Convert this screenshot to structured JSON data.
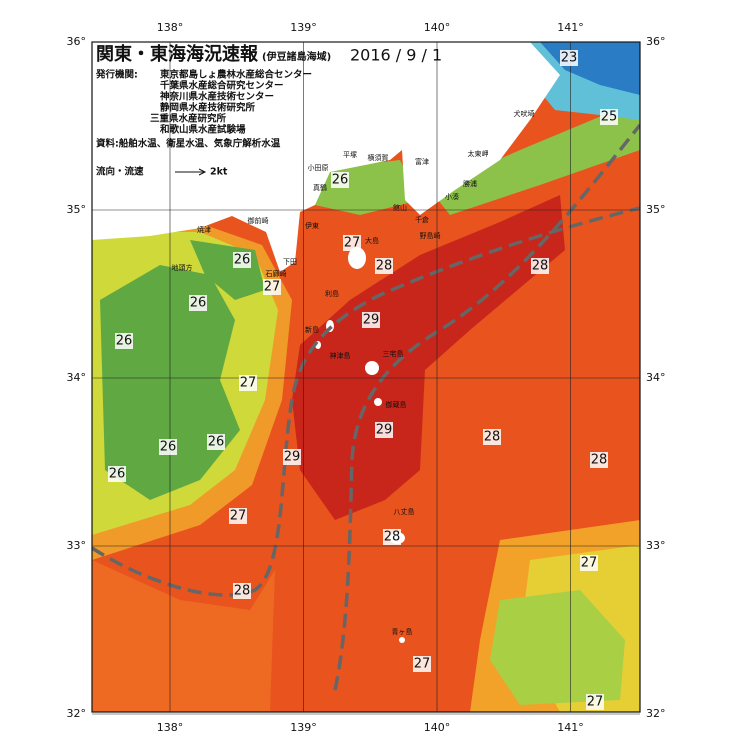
{
  "header": {
    "title": "関東・東海海況速報",
    "region": "(伊豆諸島海域)",
    "date": "2016 / 9 / 1"
  },
  "info": {
    "issuer_label": "発行機関:",
    "issuers": [
      "東京都島しょ農林水産総合センター",
      "千葉県水産総合研究センター",
      "神奈川県水産技術センター",
      "静岡県水産技術研究所",
      "三重県水産研究所",
      "和歌山県水産試験場"
    ],
    "sources": "資料:船舶水温、衛星水温、気象庁解析水温"
  },
  "legend": {
    "label": "流向・流速",
    "speed": "2kt"
  },
  "map": {
    "lon_ticks": [
      {
        "value": 138,
        "label": "138°"
      },
      {
        "value": 139,
        "label": "139°"
      },
      {
        "value": 140,
        "label": "140°"
      },
      {
        "value": 141,
        "label": "141°"
      }
    ],
    "lat_ticks": [
      {
        "value": 36,
        "label": "36°"
      },
      {
        "value": 35,
        "label": "35°"
      },
      {
        "value": 34,
        "label": "34°"
      },
      {
        "value": 33,
        "label": "33°"
      },
      {
        "value": 32,
        "label": "32°"
      }
    ],
    "temperature_labels": [
      23,
      25,
      26,
      27,
      28,
      26,
      27,
      26,
      29,
      26,
      27,
      29,
      28,
      26,
      26,
      29,
      28,
      26,
      27,
      28,
      27,
      28,
      27,
      27,
      28
    ],
    "place_names": [
      "犬吠埼",
      "太東岬",
      "勝浦",
      "小湊",
      "館山",
      "千倉",
      "野島崎",
      "富津",
      "横須賀",
      "平塚",
      "小田原",
      "真鶴",
      "伊東",
      "下田",
      "石廊崎",
      "御前崎",
      "焼津",
      "地頭方",
      "大島",
      "利島",
      "新島",
      "神津島",
      "三宅島",
      "御蔵島",
      "八丈島",
      "青ヶ島"
    ]
  }
}
